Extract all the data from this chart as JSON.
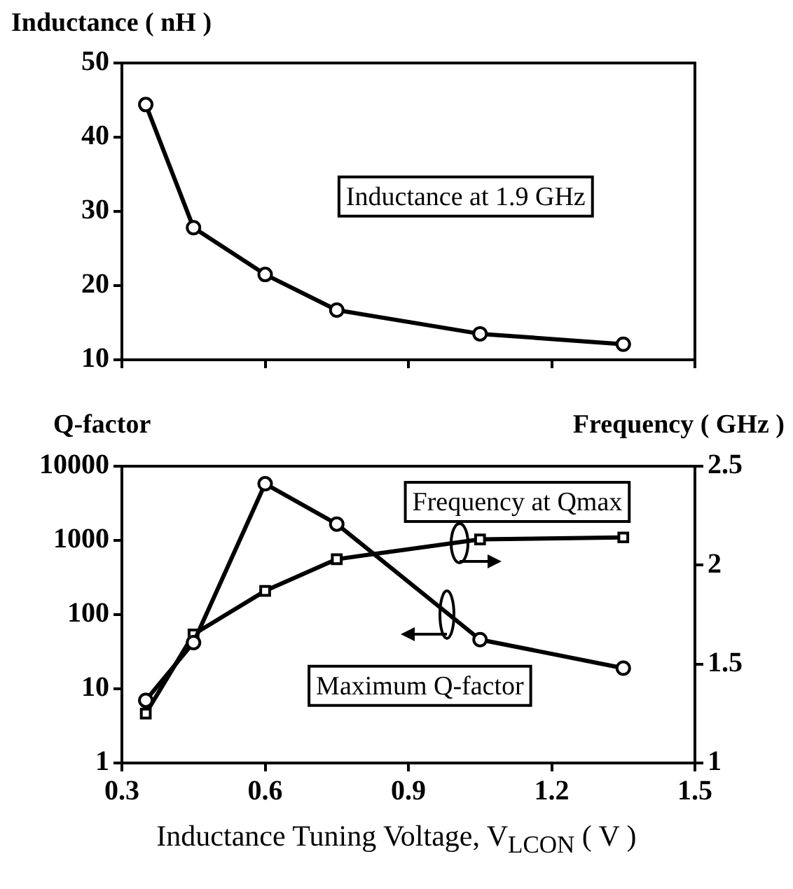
{
  "chart_data": [
    {
      "type": "line",
      "ylabel": "Inductance ( nH )",
      "x": [
        0.35,
        0.45,
        0.6,
        0.75,
        1.05,
        1.35
      ],
      "xlim": [
        0.3,
        1.5
      ],
      "xticks": [
        0.3,
        0.6,
        0.9,
        1.2,
        1.5
      ],
      "ylim": [
        10,
        50
      ],
      "yticks": [
        10,
        20,
        30,
        40,
        50
      ],
      "tick_labels": "y",
      "grid": false,
      "legend": false,
      "marker": "circle",
      "line_style": "solid",
      "annotations": [
        "Inductance at 1.9 GHz"
      ],
      "series": [
        {
          "color": "#000000",
          "values": [
            44.4,
            27.8,
            21.5,
            16.7,
            13.5,
            12.1
          ]
        }
      ]
    },
    {
      "type": "line",
      "ylabel": "Q-factor",
      "y2label": "Frequency ( GHz )",
      "xlabel": "Inductance Tuning Voltage, V$_{LCON}$ ( V )",
      "x": [
        0.35,
        0.45,
        0.6,
        0.75,
        1.05,
        1.35
      ],
      "xlim": [
        0.3,
        1.5
      ],
      "xticks": [
        0.3,
        0.6,
        0.9,
        1.2,
        1.5
      ],
      "log": "y",
      "ylim": [
        1,
        10000
      ],
      "yticks": [
        1,
        10,
        100,
        1000,
        10000
      ],
      "y2lim": [
        1,
        2.5
      ],
      "y2ticks": [
        1,
        1.5,
        2,
        2.5
      ],
      "grid": false,
      "legend": false,
      "line_style": "solid",
      "annotations": [
        "Frequency at Qmax",
        "Maximum Q-factor"
      ],
      "series": [
        {
          "color": "#000000",
          "marker": "circle",
          "values": [
            7,
            42,
            5800,
            1660,
            46,
            19
          ]
        },
        {
          "color": "#000000",
          "marker": "square",
          "axis": "y2",
          "values": [
            1.25,
            1.65,
            1.87,
            2.03,
            2.13,
            2.14
          ]
        }
      ]
    }
  ]
}
